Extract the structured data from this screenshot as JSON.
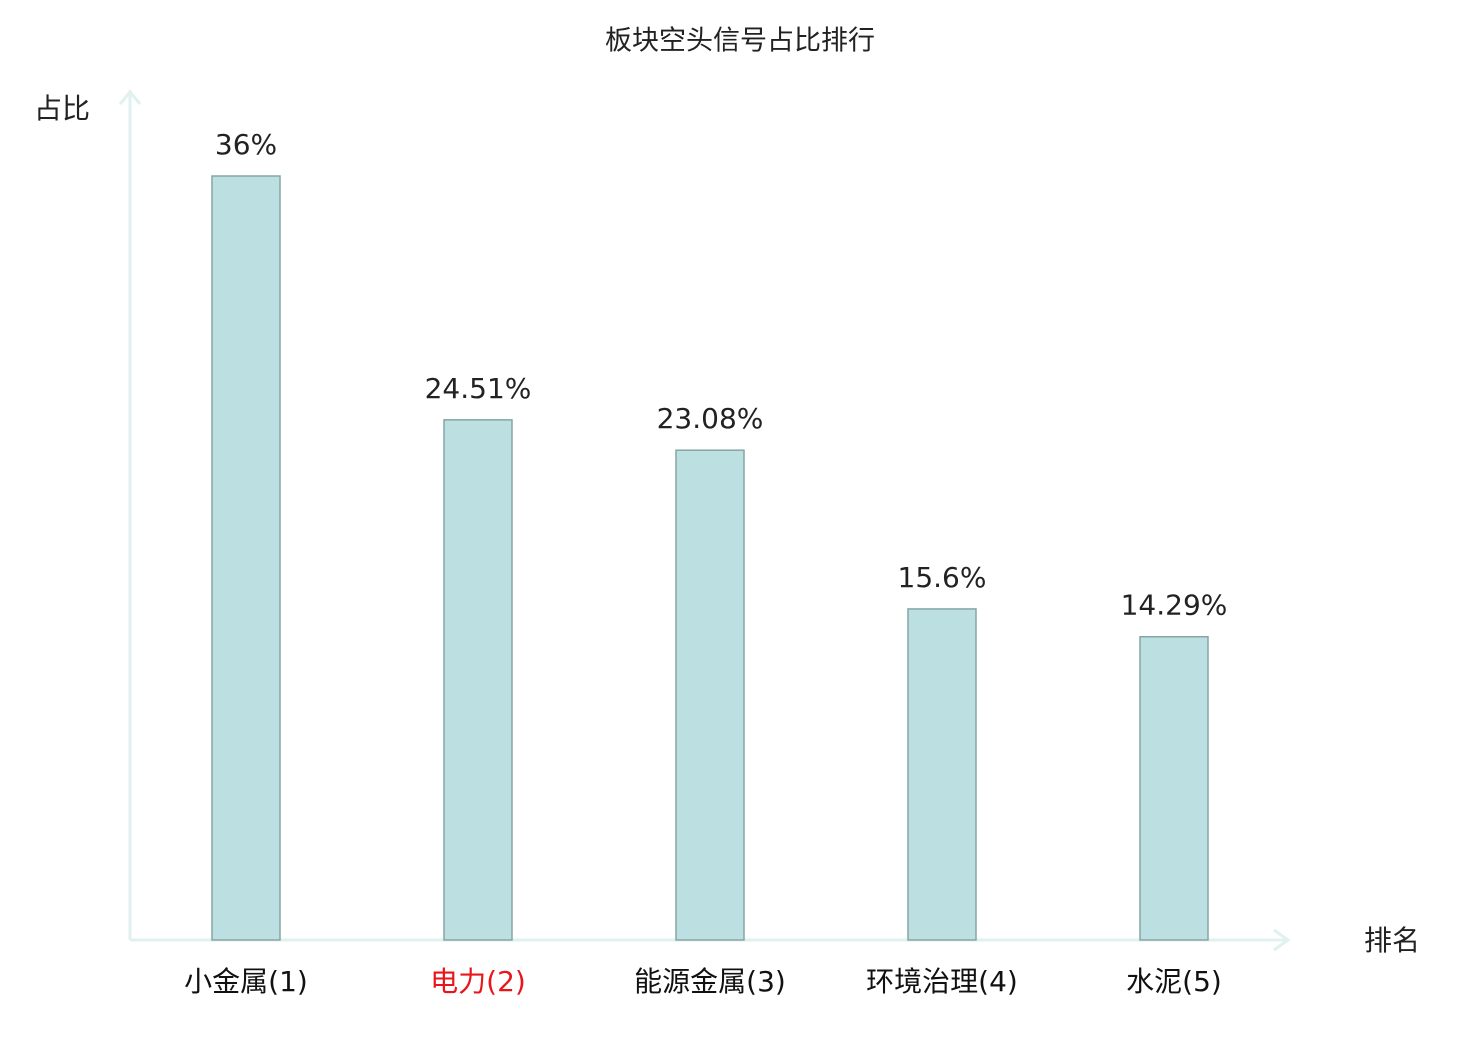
{
  "chart_data": {
    "type": "bar",
    "title": "板块空头信号占比排行",
    "y_label": "占比",
    "x_label": "排名",
    "categories": [
      "小金属(1)",
      "电力(2)",
      "能源金属(3)",
      "环境治理(4)",
      "水泥(5)"
    ],
    "category_label_colors": [
      "#111111",
      "#e8161b",
      "#111111",
      "#111111",
      "#111111"
    ],
    "values": [
      36,
      24.51,
      23.08,
      15.6,
      14.29
    ],
    "value_labels": [
      "36%",
      "24.51%",
      "23.08%",
      "15.6%",
      "14.29%"
    ],
    "color": "#bce0e1",
    "edge_color": "#86a5a6",
    "axis_color": "#dff2ef"
  }
}
